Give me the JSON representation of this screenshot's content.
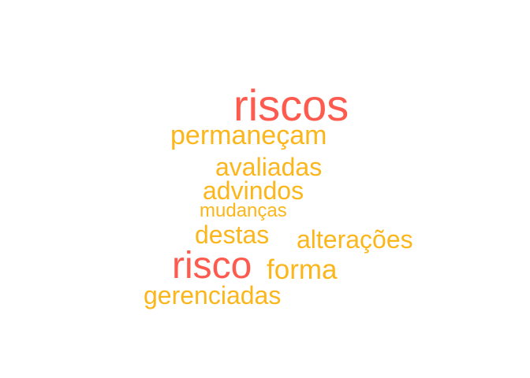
{
  "colors": {
    "primary_word": "#ff5a4e",
    "secondary_word": "#fbb61b"
  },
  "words": {
    "riscos": "riscos",
    "permanecam": "permaneçam",
    "avaliadas": "avaliadas",
    "advindos": "advindos",
    "mudancas": "mudanças",
    "destas": "destas",
    "alteracoes": "alterações",
    "risco": "risco",
    "forma": "forma",
    "gerenciadas": "gerenciadas"
  }
}
